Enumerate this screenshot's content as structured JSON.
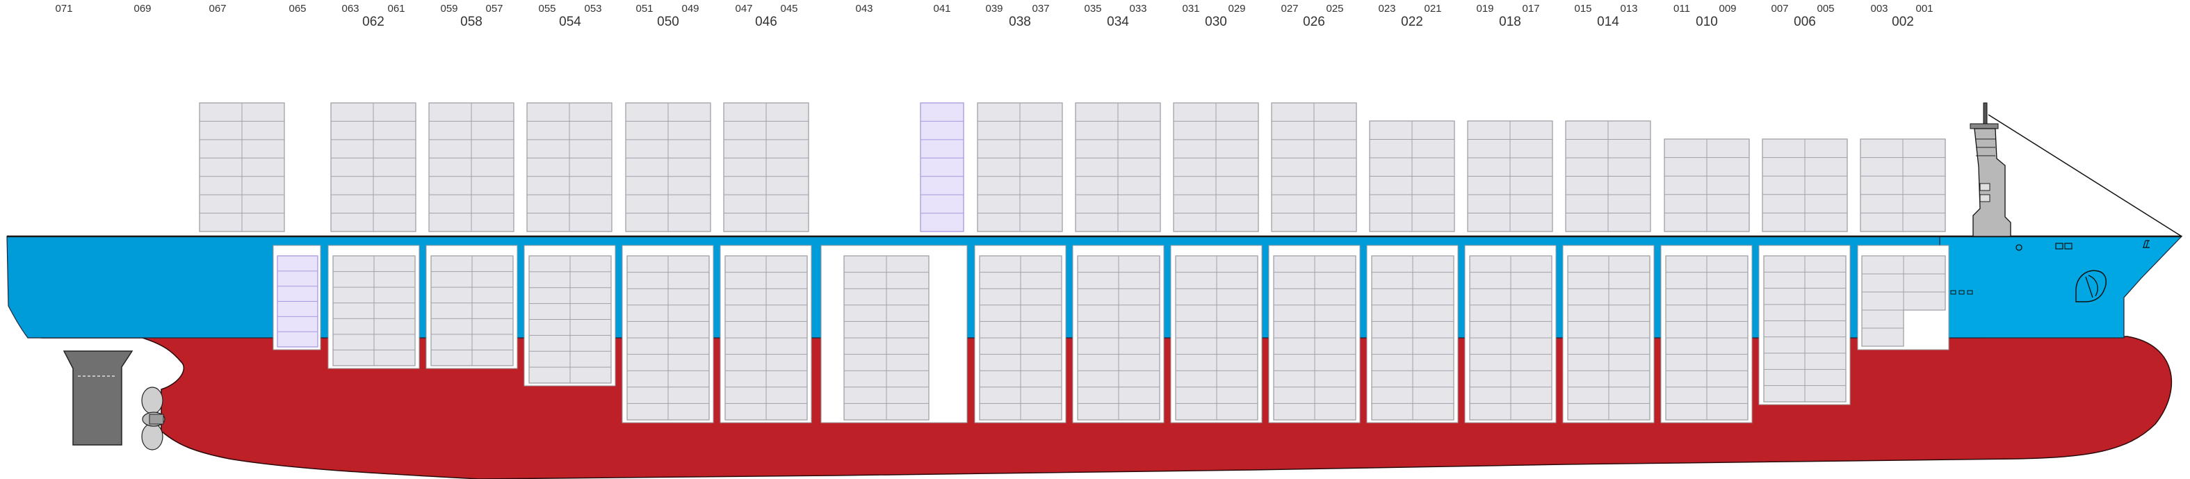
{
  "diagram": {
    "colors": {
      "hull": "#be2028",
      "band": "#009cda",
      "band_bow": "#00a7e2",
      "container_fill": "#e6e6ea",
      "container_stroke": "#a0a0a8",
      "selected_fill": "#e8e2fa",
      "selected_stroke": "#a898e0",
      "rudder": "#707070",
      "superstructure": "#b8b8b8"
    },
    "bay_labels_small": [
      "071",
      "069",
      "067",
      "065",
      "063",
      "061",
      "059",
      "057",
      "055",
      "053",
      "051",
      "049",
      "047",
      "045",
      "043",
      "041",
      "039",
      "037",
      "035",
      "033",
      "031",
      "029",
      "027",
      "025",
      "023",
      "021",
      "019",
      "017",
      "015",
      "013",
      "011",
      "009",
      "007",
      "005",
      "003",
      "001"
    ],
    "bay_labels_big": [
      "062",
      "058",
      "054",
      "050",
      "046",
      "038",
      "034",
      "030",
      "026",
      "022",
      "018",
      "014",
      "010",
      "006",
      "002"
    ],
    "selected_bays": [
      "065",
      "041"
    ]
  }
}
